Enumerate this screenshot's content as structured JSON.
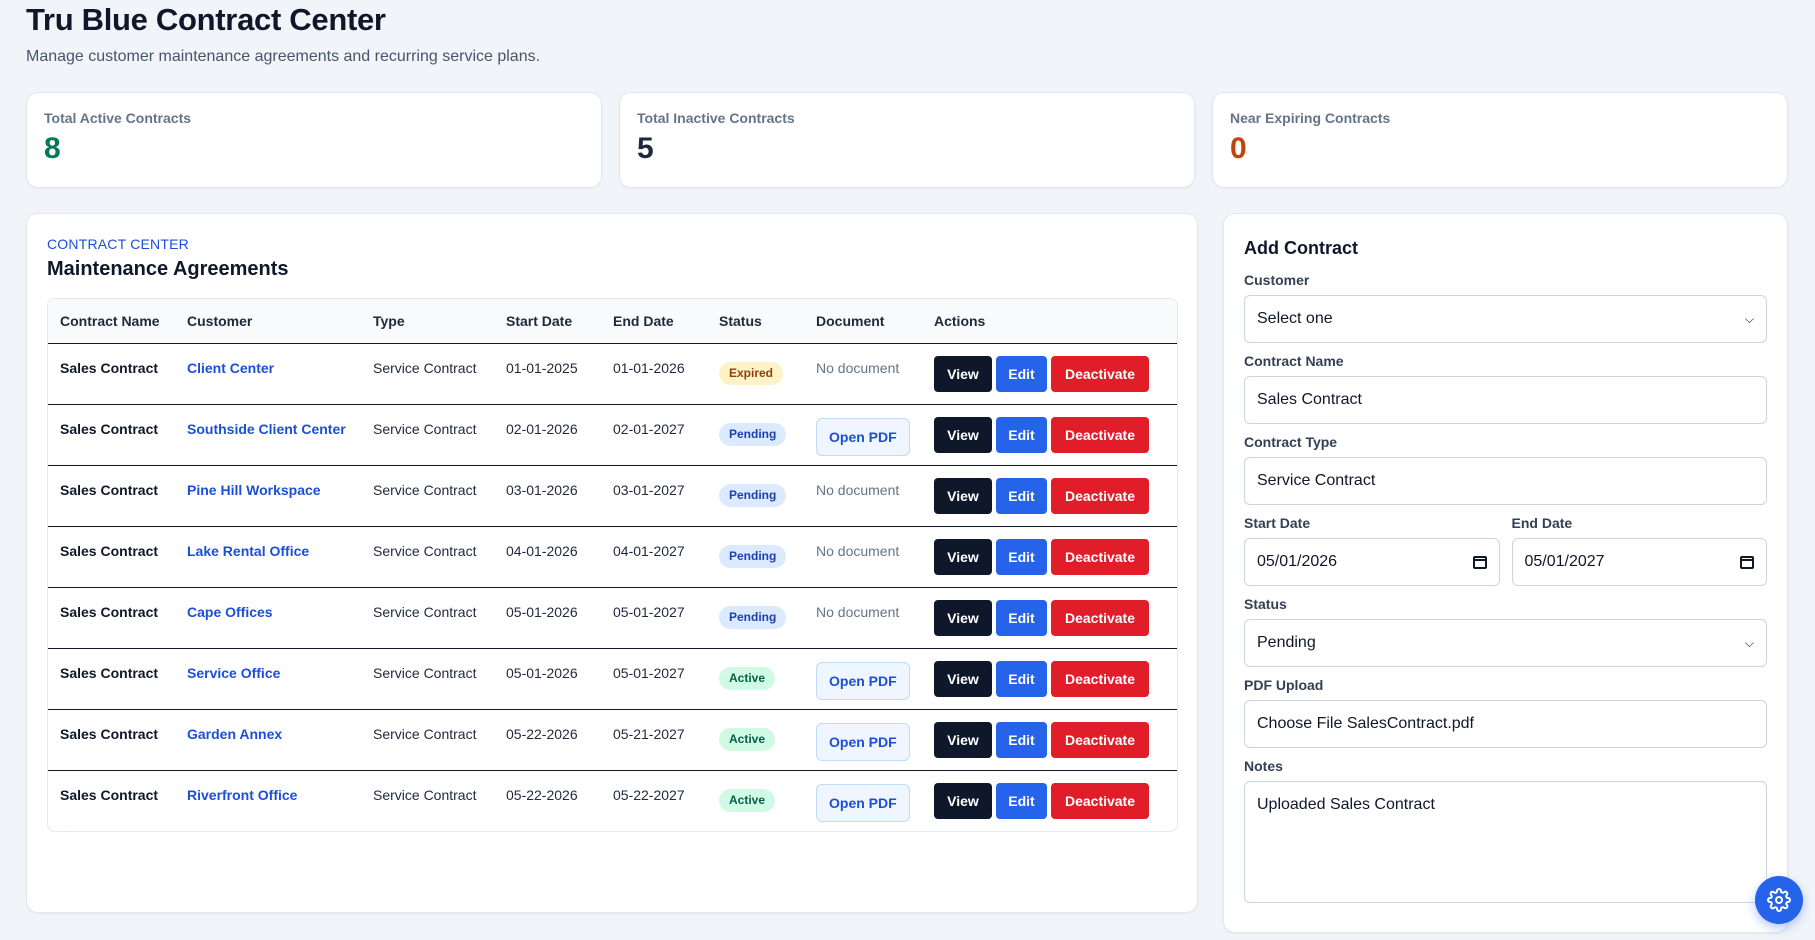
{
  "header": {
    "title": "Tru Blue Contract Center",
    "subtitle": "Manage customer maintenance agreements and recurring service plans."
  },
  "stats": [
    {
      "label": "Total Active Contracts",
      "value": "8",
      "color": "#047857"
    },
    {
      "label": "Total Inactive Contracts",
      "value": "5",
      "color": "#1e293b"
    },
    {
      "label": "Near Expiring Contracts",
      "value": "0",
      "color": "#c2410c"
    }
  ],
  "table_section": {
    "eyebrow": "CONTRACT CENTER",
    "title": "Maintenance Agreements",
    "columns": [
      "Contract Name",
      "Customer",
      "Type",
      "Start Date",
      "End Date",
      "Status",
      "Document",
      "Actions"
    ],
    "actions": {
      "view": "View",
      "edit": "Edit",
      "deactivate": "Deactivate"
    },
    "rows": [
      {
        "name": "Sales Contract",
        "customer": "Client Center",
        "type": "Service Contract",
        "start": "01-01-2025",
        "end": "01-01-2026",
        "status": "Expired",
        "document": "No document"
      },
      {
        "name": "Sales Contract",
        "customer": "Southside Client Center",
        "type": "Service Contract",
        "start": "02-01-2026",
        "end": "02-01-2027",
        "status": "Pending",
        "document": "Open PDF"
      },
      {
        "name": "Sales Contract",
        "customer": "Pine Hill Workspace",
        "type": "Service Contract",
        "start": "03-01-2026",
        "end": "03-01-2027",
        "status": "Pending",
        "document": "No document"
      },
      {
        "name": "Sales Contract",
        "customer": "Lake Rental Office",
        "type": "Service Contract",
        "start": "04-01-2026",
        "end": "04-01-2027",
        "status": "Pending",
        "document": "No document"
      },
      {
        "name": "Sales Contract",
        "customer": "Cape Offices",
        "type": "Service Contract",
        "start": "05-01-2026",
        "end": "05-01-2027",
        "status": "Pending",
        "document": "No document"
      },
      {
        "name": "Sales Contract",
        "customer": "Service Office",
        "type": "Service Contract",
        "start": "05-01-2026",
        "end": "05-01-2027",
        "status": "Active",
        "document": "Open PDF"
      },
      {
        "name": "Sales Contract",
        "customer": "Garden Annex",
        "type": "Service Contract",
        "start": "05-22-2026",
        "end": "05-21-2027",
        "status": "Active",
        "document": "Open PDF"
      },
      {
        "name": "Sales Contract",
        "customer": "Riverfront Office",
        "type": "Service Contract",
        "start": "05-22-2026",
        "end": "05-22-2027",
        "status": "Active",
        "document": "Open PDF"
      }
    ]
  },
  "form": {
    "title": "Add Contract",
    "customer": {
      "label": "Customer",
      "value": "Select one"
    },
    "contract_name": {
      "label": "Contract Name",
      "value": "Sales Contract"
    },
    "contract_type": {
      "label": "Contract Type",
      "value": "Service Contract"
    },
    "start_date": {
      "label": "Start Date",
      "value": "05/01/2026"
    },
    "end_date": {
      "label": "End Date",
      "value": "05/01/2027"
    },
    "status": {
      "label": "Status",
      "value": "Pending"
    },
    "pdf_upload": {
      "label": "PDF Upload",
      "value": "Choose File SalesContract.pdf"
    },
    "notes": {
      "label": "Notes",
      "value": "Uploaded Sales Contract"
    }
  },
  "fab": {
    "icon": "gear-icon",
    "color": "#2563eb"
  }
}
